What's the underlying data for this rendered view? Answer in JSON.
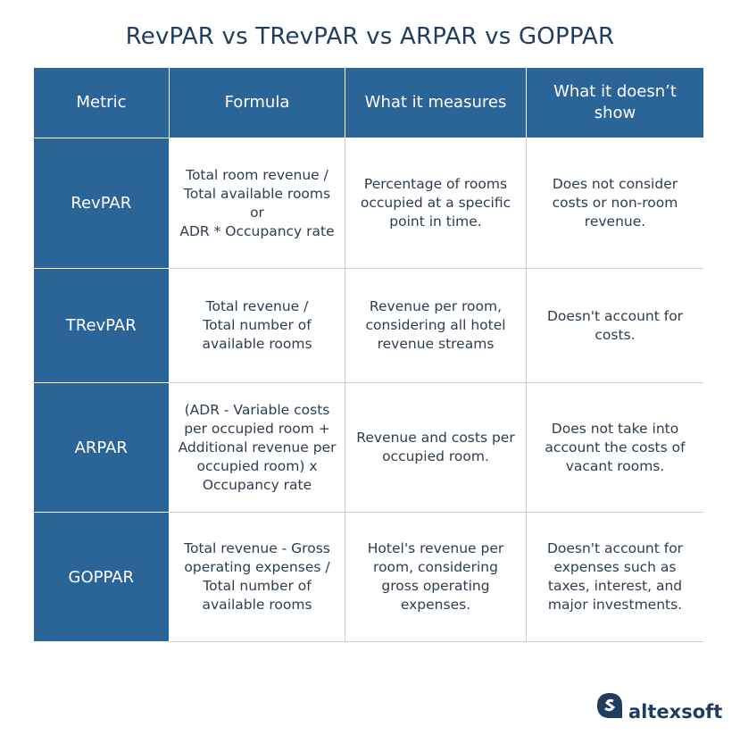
{
  "title": "RevPAR vs TRevPAR vs ARPAR vs GOPPAR",
  "table": {
    "header": [
      [
        "Metric"
      ],
      [
        "Formula"
      ],
      [
        "What it measures"
      ],
      [
        "What it doesn’t",
        "show"
      ]
    ],
    "rows": [
      [
        [
          "RevPAR"
        ],
        [
          "Total room revenue /",
          "Total available rooms",
          "or",
          "ADR * Occupancy rate"
        ],
        [
          "Percentage of rooms",
          "occupied at a specific",
          "point in time."
        ],
        [
          "Does not consider",
          "costs or non-room",
          "revenue."
        ]
      ],
      [
        [
          "TRevPAR"
        ],
        [
          "Total revenue /",
          "Total number of",
          "available rooms"
        ],
        [
          "Revenue per room,",
          "considering all hotel",
          "revenue streams"
        ],
        [
          "Doesn't account for",
          "costs."
        ]
      ],
      [
        [
          "ARPAR"
        ],
        [
          "(ADR - Variable costs",
          "per occupied room +",
          "Additional revenue per",
          "occupied room) x",
          "Occupancy rate"
        ],
        [
          "Revenue and costs per",
          "occupied room."
        ],
        [
          "Does not take into",
          "account the costs of",
          "vacant rooms."
        ]
      ],
      [
        [
          "GOPPAR"
        ],
        [
          "Total revenue - Gross",
          "operating expenses /",
          "Total number of",
          "available rooms"
        ],
        [
          "Hotel's revenue per",
          "room, considering",
          "gross operating",
          "expenses."
        ],
        [
          "Doesn't account for",
          "expenses such as",
          "taxes, interest, and",
          "major investments."
        ]
      ]
    ]
  },
  "logo": "altexsoft"
}
